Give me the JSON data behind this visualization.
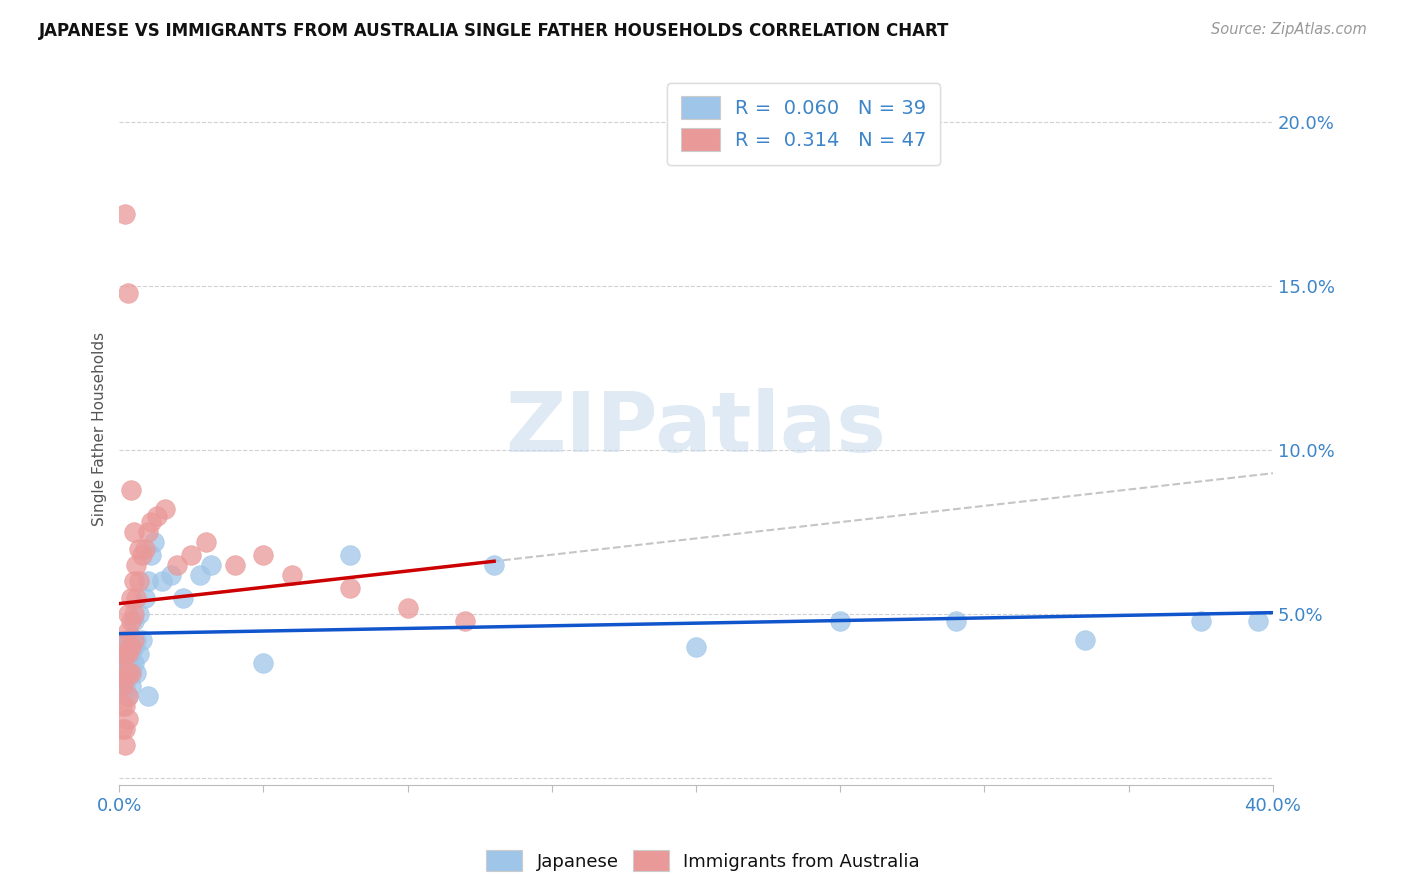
{
  "title": "JAPANESE VS IMMIGRANTS FROM AUSTRALIA SINGLE FATHER HOUSEHOLDS CORRELATION CHART",
  "source": "Source: ZipAtlas.com",
  "ylabel": "Single Father Households",
  "xlim": [
    0.0,
    0.4
  ],
  "ylim": [
    -0.002,
    0.215
  ],
  "xticks": [
    0.0,
    0.05,
    0.1,
    0.15,
    0.2,
    0.25,
    0.3,
    0.35,
    0.4
  ],
  "yticks": [
    0.0,
    0.05,
    0.1,
    0.15,
    0.2
  ],
  "legend_label1": "Japanese",
  "legend_label2": "Immigrants from Australia",
  "color_blue": "#9fc5e8",
  "color_pink": "#ea9999",
  "color_blue_line": "#1155cc",
  "color_pink_line": "#cc0000",
  "color_dashed": "#bbbbbb",
  "watermark": "ZIPatlas",
  "japanese_x": [
    0.001,
    0.001,
    0.001,
    0.002,
    0.002,
    0.002,
    0.003,
    0.003,
    0.003,
    0.004,
    0.004,
    0.004,
    0.005,
    0.005,
    0.005,
    0.006,
    0.006,
    0.007,
    0.007,
    0.008,
    0.009,
    0.01,
    0.011,
    0.012,
    0.015,
    0.018,
    0.022,
    0.028,
    0.032,
    0.05,
    0.08,
    0.13,
    0.2,
    0.25,
    0.29,
    0.335,
    0.375,
    0.395,
    0.01
  ],
  "japanese_y": [
    0.04,
    0.035,
    0.03,
    0.038,
    0.032,
    0.028,
    0.042,
    0.035,
    0.025,
    0.038,
    0.032,
    0.028,
    0.048,
    0.04,
    0.035,
    0.042,
    0.032,
    0.05,
    0.038,
    0.042,
    0.055,
    0.06,
    0.068,
    0.072,
    0.06,
    0.062,
    0.055,
    0.062,
    0.065,
    0.035,
    0.068,
    0.065,
    0.04,
    0.048,
    0.048,
    0.042,
    0.048,
    0.048,
    0.025
  ],
  "australia_x": [
    0.001,
    0.001,
    0.001,
    0.001,
    0.001,
    0.002,
    0.002,
    0.002,
    0.002,
    0.002,
    0.002,
    0.003,
    0.003,
    0.003,
    0.003,
    0.003,
    0.003,
    0.004,
    0.004,
    0.004,
    0.004,
    0.005,
    0.005,
    0.005,
    0.006,
    0.006,
    0.007,
    0.007,
    0.008,
    0.009,
    0.01,
    0.011,
    0.013,
    0.016,
    0.02,
    0.025,
    0.03,
    0.04,
    0.05,
    0.06,
    0.08,
    0.1,
    0.12,
    0.002,
    0.003,
    0.004,
    0.005
  ],
  "australia_y": [
    0.038,
    0.032,
    0.028,
    0.022,
    0.015,
    0.042,
    0.038,
    0.03,
    0.022,
    0.015,
    0.01,
    0.05,
    0.045,
    0.038,
    0.032,
    0.025,
    0.018,
    0.055,
    0.048,
    0.04,
    0.032,
    0.06,
    0.05,
    0.042,
    0.065,
    0.055,
    0.07,
    0.06,
    0.068,
    0.07,
    0.075,
    0.078,
    0.08,
    0.082,
    0.065,
    0.068,
    0.072,
    0.065,
    0.068,
    0.062,
    0.058,
    0.052,
    0.048,
    0.172,
    0.148,
    0.088,
    0.075
  ]
}
